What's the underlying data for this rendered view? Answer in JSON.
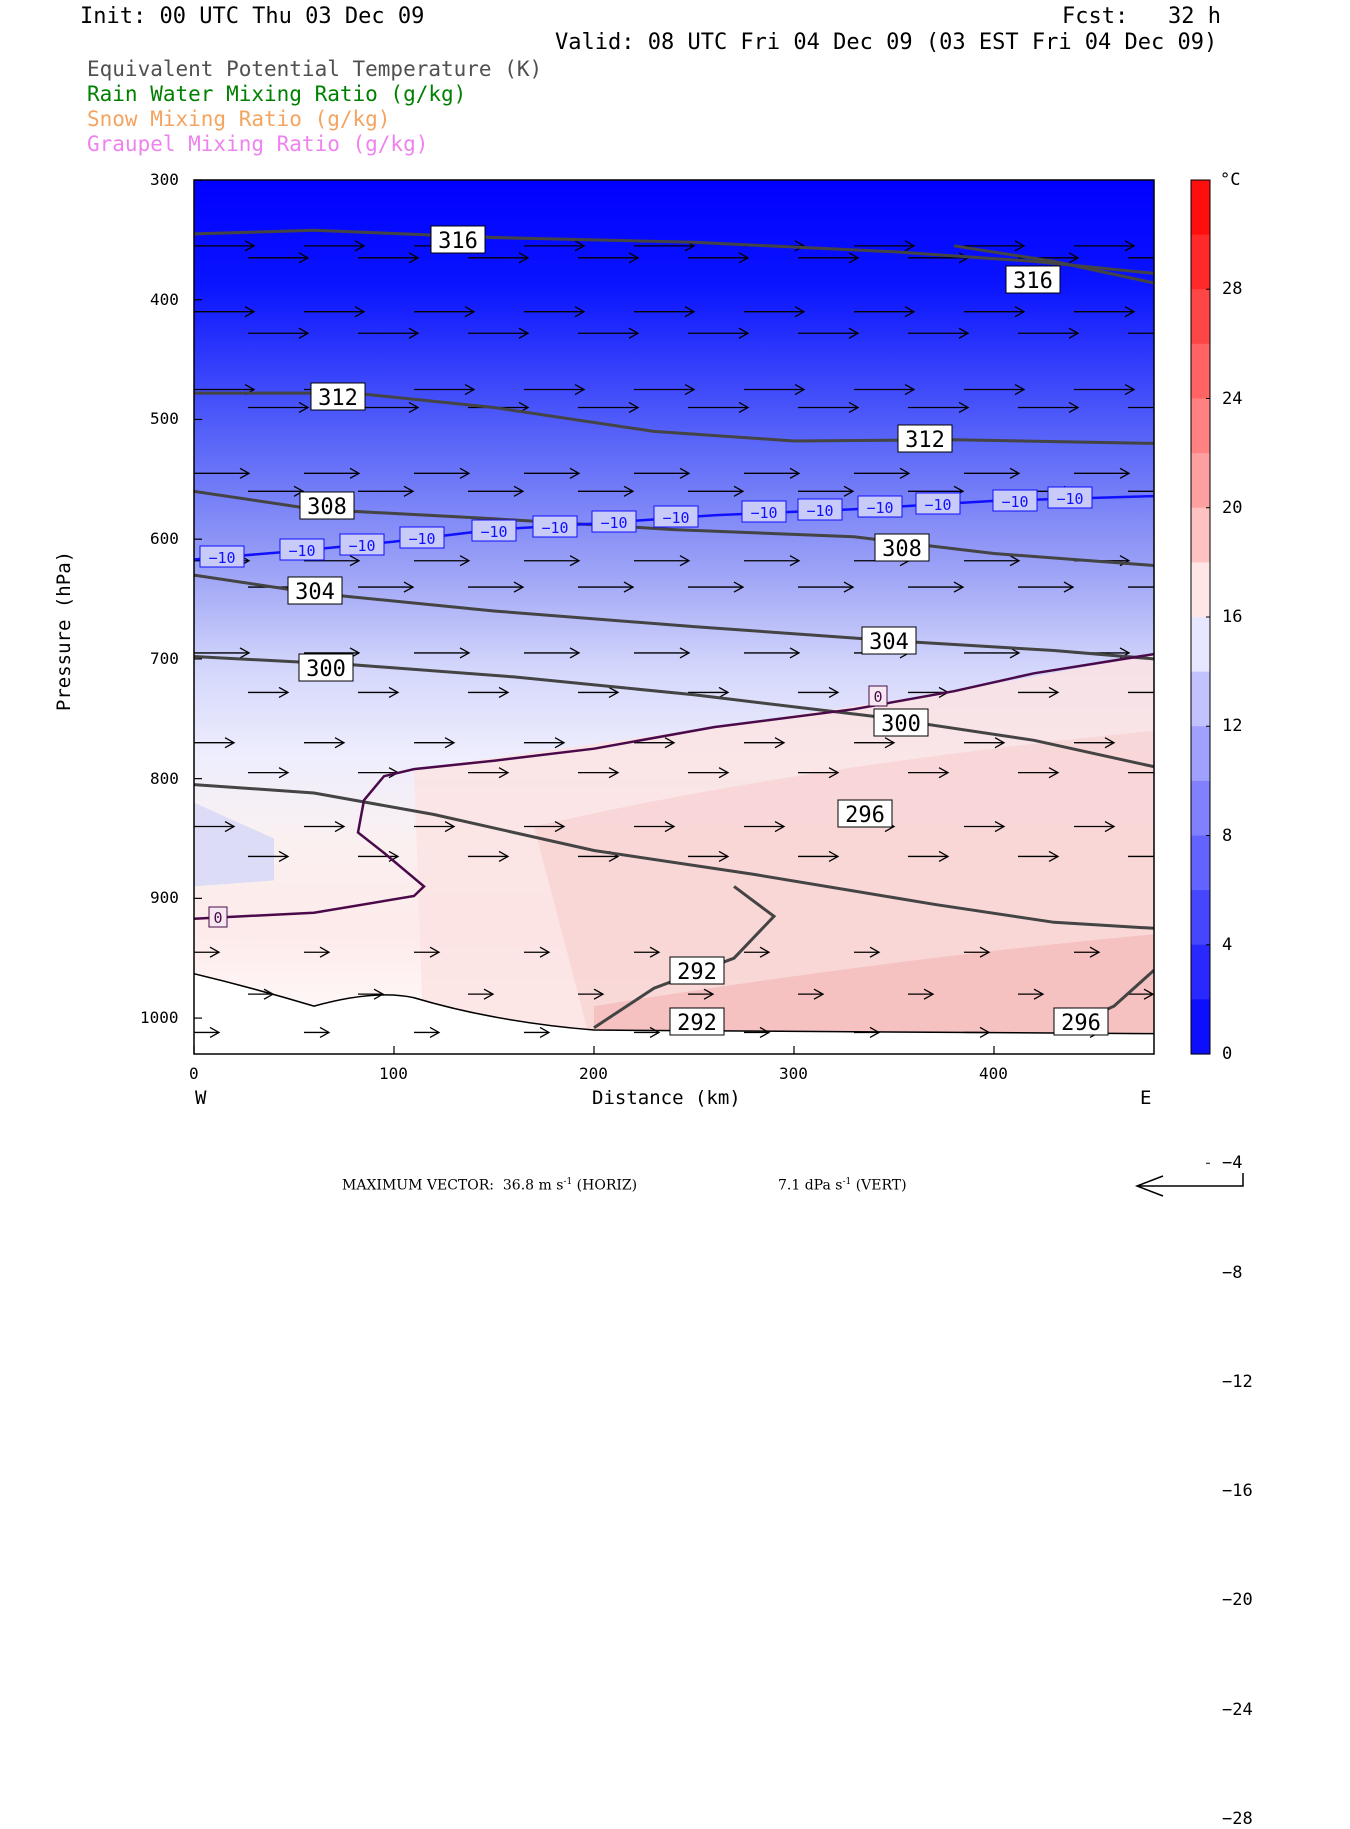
{
  "header": {
    "init": "Init: 00 UTC Thu 03 Dec 09",
    "fcst": "Fcst:   32 h",
    "valid": "Valid: 08 UTC Fri 04 Dec 09 (03 EST Fri 04 Dec 09)"
  },
  "legend": [
    {
      "text": "Equivalent Potential Temperature (K)",
      "color": "#505050"
    },
    {
      "text": "Rain Water Mixing Ratio (g/kg)",
      "color": "#008000"
    },
    {
      "text": "Snow Mixing Ratio (g/kg)",
      "color": "#f4a460"
    },
    {
      "text": "Graupel Mixing Ratio (g/kg)",
      "color": "#ee82ee"
    }
  ],
  "chart_data": {
    "type": "heatmap",
    "xlabel": "Distance (km)",
    "ylabel": "Pressure (hPa)",
    "xlim": [
      0,
      480
    ],
    "ylim": [
      1030,
      300
    ],
    "xticks": [
      0,
      100,
      200,
      300,
      400
    ],
    "yticks": [
      300,
      400,
      500,
      600,
      700,
      800,
      900,
      1000
    ],
    "x_end_labels": {
      "left": "W",
      "right": "E"
    },
    "colorbar": {
      "unit": "°C",
      "range": [
        -32,
        32
      ],
      "step": 4,
      "tick_labels": [
        "28",
        "24",
        "20",
        "16",
        "12",
        "8",
        "4",
        "0",
        "−4",
        "−8",
        "−12",
        "−16",
        "−20",
        "−24",
        "−28"
      ],
      "cold_color": "#0000ff",
      "warm_color": "#ff0000",
      "zero_color": "#ffffff"
    },
    "theta_e_contours": [
      {
        "label": "316",
        "points": [
          [
            0,
            345
          ],
          [
            60,
            342
          ],
          [
            150,
            348
          ],
          [
            250,
            352
          ],
          [
            350,
            360
          ],
          [
            420,
            368
          ],
          [
            480,
            378
          ]
        ]
      },
      {
        "label": "316",
        "points": [
          [
            380,
            355
          ],
          [
            430,
            368
          ],
          [
            480,
            386
          ]
        ]
      },
      {
        "label": "312",
        "points": [
          [
            0,
            478
          ],
          [
            80,
            478
          ],
          [
            150,
            490
          ],
          [
            230,
            510
          ],
          [
            300,
            518
          ],
          [
            380,
            517
          ],
          [
            480,
            520
          ]
        ]
      },
      {
        "label": "308",
        "points": [
          [
            0,
            560
          ],
          [
            60,
            575
          ],
          [
            150,
            583
          ],
          [
            240,
            592
          ],
          [
            330,
            598
          ],
          [
            400,
            612
          ],
          [
            480,
            622
          ]
        ]
      },
      {
        "label": "304",
        "points": [
          [
            0,
            630
          ],
          [
            60,
            645
          ],
          [
            150,
            660
          ],
          [
            250,
            673
          ],
          [
            350,
            685
          ],
          [
            430,
            693
          ],
          [
            480,
            700
          ]
        ]
      },
      {
        "label": "300",
        "points": [
          [
            0,
            698
          ],
          [
            80,
            705
          ],
          [
            160,
            715
          ],
          [
            250,
            730
          ],
          [
            340,
            748
          ],
          [
            420,
            768
          ],
          [
            480,
            790
          ]
        ]
      },
      {
        "label": "296",
        "points": [
          [
            0,
            805
          ],
          [
            60,
            812
          ],
          [
            120,
            830
          ],
          [
            200,
            860
          ],
          [
            280,
            880
          ],
          [
            370,
            905
          ],
          [
            430,
            920
          ],
          [
            480,
            925
          ]
        ]
      },
      {
        "label": "292",
        "points": [
          [
            200,
            1008
          ],
          [
            230,
            975
          ],
          [
            270,
            950
          ],
          [
            290,
            915
          ],
          [
            270,
            890
          ]
        ]
      },
      {
        "label": "296",
        "points": [
          [
            430,
            1013
          ],
          [
            460,
            990
          ],
          [
            480,
            960
          ]
        ]
      }
    ],
    "temperature_contours": [
      {
        "label": "−10",
        "points": [
          [
            0,
            617
          ],
          [
            50,
            610
          ],
          [
            100,
            602
          ],
          [
            150,
            592
          ],
          [
            200,
            587
          ],
          [
            260,
            580
          ],
          [
            330,
            575
          ],
          [
            400,
            568
          ],
          [
            480,
            564
          ]
        ]
      },
      {
        "label": "0",
        "points": [
          [
            0,
            917
          ],
          [
            60,
            912
          ],
          [
            110,
            898
          ],
          [
            115,
            890
          ],
          [
            95,
            862
          ],
          [
            82,
            845
          ],
          [
            85,
            818
          ],
          [
            95,
            798
          ],
          [
            110,
            792
          ],
          [
            150,
            785
          ],
          [
            200,
            775
          ],
          [
            260,
            757
          ],
          [
            330,
            742
          ],
          [
            380,
            727
          ],
          [
            420,
            712
          ],
          [
            480,
            696
          ]
        ]
      }
    ],
    "wind_vectors": {
      "max_horizontal": "36.8 m s⁻¹ (HORIZ)",
      "max_vertical": "7.1 dPa s⁻¹ (VERT)"
    }
  },
  "footer": {
    "max_vector_label": "MAXIMUM VECTOR:",
    "horiz": "36.8 m s",
    "horiz_unit": "(HORIZ)",
    "vert": "7.1 dPa s",
    "vert_unit": "(VERT)",
    "exponent": "-1"
  }
}
